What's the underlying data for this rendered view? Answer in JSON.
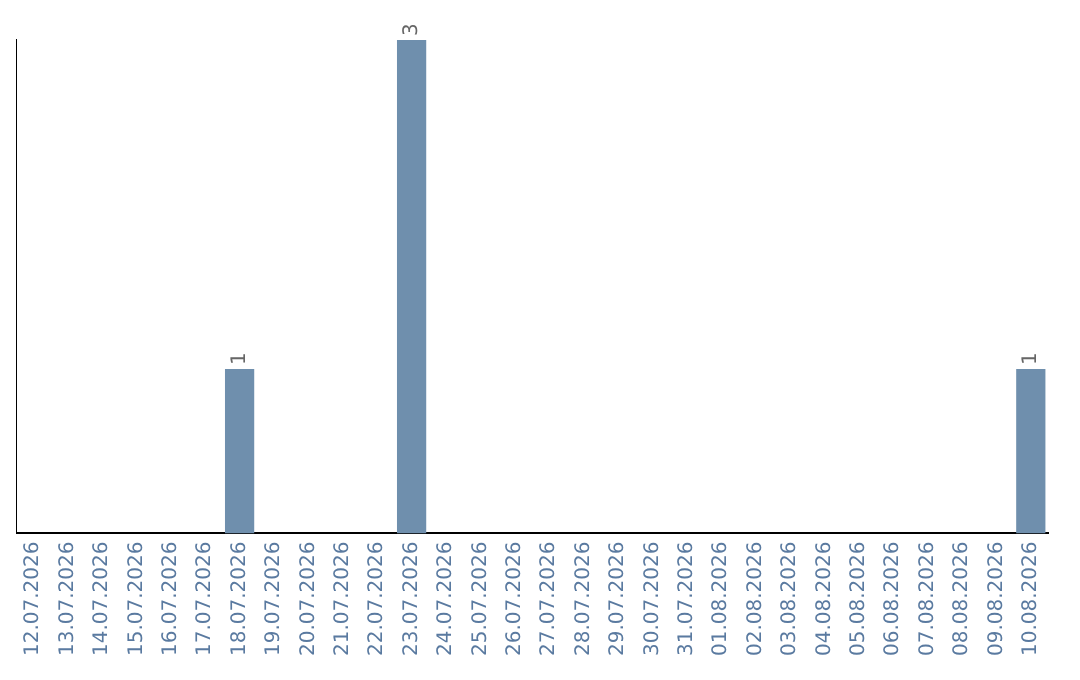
{
  "chart_data": {
    "type": "bar",
    "categories": [
      "12.07.2026",
      "13.07.2026",
      "14.07.2026",
      "15.07.2026",
      "16.07.2026",
      "17.07.2026",
      "18.07.2026",
      "19.07.2026",
      "20.07.2026",
      "21.07.2026",
      "22.07.2026",
      "23.07.2026",
      "24.07.2026",
      "25.07.2026",
      "26.07.2026",
      "27.07.2026",
      "28.07.2026",
      "29.07.2026",
      "30.07.2026",
      "31.07.2026",
      "01.08.2026",
      "02.08.2026",
      "03.08.2026",
      "04.08.2026",
      "05.08.2026",
      "06.08.2026",
      "07.08.2026",
      "08.08.2026",
      "09.08.2026",
      "10.08.2026"
    ],
    "values": [
      0,
      0,
      0,
      0,
      0,
      0,
      1,
      0,
      0,
      0,
      0,
      3,
      0,
      0,
      0,
      0,
      0,
      0,
      0,
      0,
      0,
      0,
      0,
      0,
      0,
      0,
      0,
      0,
      0,
      1
    ],
    "value_labels": [
      null,
      null,
      null,
      null,
      null,
      null,
      "1",
      null,
      null,
      null,
      null,
      "3",
      null,
      null,
      null,
      null,
      null,
      null,
      null,
      null,
      null,
      null,
      null,
      null,
      null,
      null,
      null,
      null,
      null,
      "1"
    ],
    "color": "#6f8fad",
    "grid": false,
    "legend": false
  }
}
